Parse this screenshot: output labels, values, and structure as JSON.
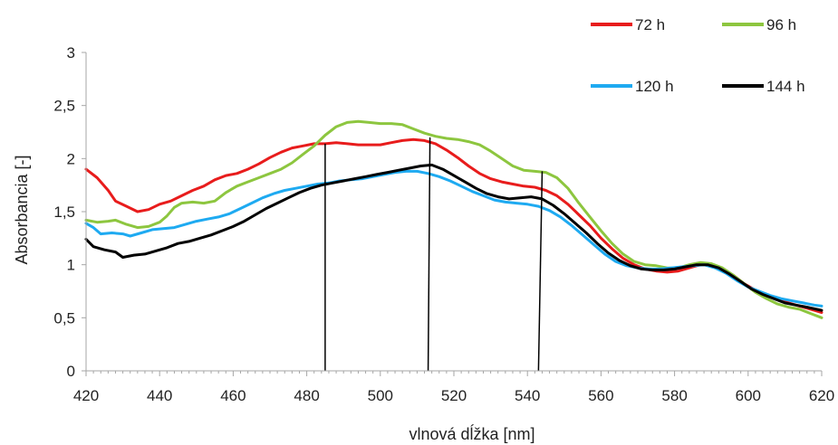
{
  "chart_data": {
    "type": "line",
    "title": "",
    "xlabel": "vlnová dĺžka [nm]",
    "ylabel": "Absorbancia [-]",
    "xlim": [
      420,
      620
    ],
    "ylim": [
      0,
      3
    ],
    "x_ticks": [
      420,
      440,
      460,
      480,
      500,
      520,
      540,
      560,
      580,
      600,
      620
    ],
    "x_tick_labels": [
      "420",
      "440",
      "460",
      "480",
      "500",
      "520",
      "540",
      "560",
      "580",
      "600",
      "620"
    ],
    "y_ticks": [
      0,
      0.5,
      1,
      1.5,
      2,
      2.5,
      3
    ],
    "y_tick_labels": [
      "0",
      "0,5",
      "1",
      "1,5",
      "2",
      "2,5",
      "3"
    ],
    "grid": false,
    "legend_position": "top-right",
    "series": [
      {
        "name": "72 h",
        "color": "#e81c1c",
        "points": [
          [
            420,
            1.9
          ],
          [
            423,
            1.82
          ],
          [
            426,
            1.7
          ],
          [
            428,
            1.6
          ],
          [
            431,
            1.55
          ],
          [
            434,
            1.5
          ],
          [
            437,
            1.52
          ],
          [
            440,
            1.57
          ],
          [
            443,
            1.6
          ],
          [
            446,
            1.65
          ],
          [
            449,
            1.7
          ],
          [
            452,
            1.74
          ],
          [
            455,
            1.8
          ],
          [
            458,
            1.84
          ],
          [
            461,
            1.86
          ],
          [
            464,
            1.9
          ],
          [
            467,
            1.95
          ],
          [
            470,
            2.01
          ],
          [
            473,
            2.06
          ],
          [
            476,
            2.1
          ],
          [
            479,
            2.12
          ],
          [
            482,
            2.14
          ],
          [
            485,
            2.14
          ],
          [
            488,
            2.15
          ],
          [
            491,
            2.14
          ],
          [
            494,
            2.13
          ],
          [
            497,
            2.13
          ],
          [
            500,
            2.13
          ],
          [
            503,
            2.15
          ],
          [
            506,
            2.17
          ],
          [
            509,
            2.18
          ],
          [
            512,
            2.17
          ],
          [
            515,
            2.14
          ],
          [
            518,
            2.08
          ],
          [
            521,
            2.01
          ],
          [
            524,
            1.93
          ],
          [
            527,
            1.86
          ],
          [
            530,
            1.81
          ],
          [
            533,
            1.78
          ],
          [
            536,
            1.76
          ],
          [
            539,
            1.74
          ],
          [
            542,
            1.73
          ],
          [
            545,
            1.7
          ],
          [
            548,
            1.65
          ],
          [
            551,
            1.57
          ],
          [
            554,
            1.47
          ],
          [
            557,
            1.37
          ],
          [
            560,
            1.25
          ],
          [
            563,
            1.15
          ],
          [
            566,
            1.06
          ],
          [
            569,
            1.0
          ],
          [
            572,
            0.96
          ],
          [
            575,
            0.94
          ],
          [
            578,
            0.93
          ],
          [
            581,
            0.94
          ],
          [
            584,
            0.97
          ],
          [
            587,
            1.0
          ],
          [
            590,
            1.0
          ],
          [
            593,
            0.96
          ],
          [
            596,
            0.9
          ],
          [
            599,
            0.82
          ],
          [
            602,
            0.76
          ],
          [
            605,
            0.72
          ],
          [
            608,
            0.68
          ],
          [
            611,
            0.64
          ],
          [
            614,
            0.61
          ],
          [
            617,
            0.58
          ],
          [
            620,
            0.55
          ]
        ]
      },
      {
        "name": "96 h",
        "color": "#8dc63f",
        "points": [
          [
            420,
            1.42
          ],
          [
            423,
            1.4
          ],
          [
            426,
            1.41
          ],
          [
            428,
            1.42
          ],
          [
            431,
            1.38
          ],
          [
            434,
            1.35
          ],
          [
            437,
            1.36
          ],
          [
            440,
            1.4
          ],
          [
            442,
            1.46
          ],
          [
            444,
            1.54
          ],
          [
            446,
            1.58
          ],
          [
            449,
            1.59
          ],
          [
            452,
            1.58
          ],
          [
            455,
            1.6
          ],
          [
            458,
            1.68
          ],
          [
            461,
            1.74
          ],
          [
            464,
            1.78
          ],
          [
            467,
            1.82
          ],
          [
            470,
            1.86
          ],
          [
            473,
            1.9
          ],
          [
            476,
            1.96
          ],
          [
            479,
            2.04
          ],
          [
            482,
            2.12
          ],
          [
            485,
            2.22
          ],
          [
            488,
            2.3
          ],
          [
            491,
            2.34
          ],
          [
            494,
            2.35
          ],
          [
            497,
            2.34
          ],
          [
            500,
            2.33
          ],
          [
            503,
            2.33
          ],
          [
            506,
            2.32
          ],
          [
            509,
            2.28
          ],
          [
            512,
            2.24
          ],
          [
            515,
            2.21
          ],
          [
            518,
            2.19
          ],
          [
            521,
            2.18
          ],
          [
            524,
            2.16
          ],
          [
            527,
            2.13
          ],
          [
            530,
            2.07
          ],
          [
            533,
            2.0
          ],
          [
            536,
            1.93
          ],
          [
            539,
            1.89
          ],
          [
            542,
            1.88
          ],
          [
            545,
            1.87
          ],
          [
            548,
            1.82
          ],
          [
            551,
            1.72
          ],
          [
            554,
            1.58
          ],
          [
            557,
            1.45
          ],
          [
            560,
            1.32
          ],
          [
            563,
            1.2
          ],
          [
            566,
            1.1
          ],
          [
            569,
            1.03
          ],
          [
            572,
            1.0
          ],
          [
            575,
            0.99
          ],
          [
            578,
            0.97
          ],
          [
            581,
            0.97
          ],
          [
            584,
            1.0
          ],
          [
            587,
            1.02
          ],
          [
            590,
            1.01
          ],
          [
            593,
            0.97
          ],
          [
            596,
            0.9
          ],
          [
            599,
            0.82
          ],
          [
            602,
            0.74
          ],
          [
            605,
            0.68
          ],
          [
            608,
            0.63
          ],
          [
            611,
            0.6
          ],
          [
            614,
            0.58
          ],
          [
            617,
            0.54
          ],
          [
            620,
            0.5
          ]
        ]
      },
      {
        "name": "120 h",
        "color": "#1eaaf1",
        "points": [
          [
            420,
            1.39
          ],
          [
            422,
            1.35
          ],
          [
            424,
            1.29
          ],
          [
            427,
            1.3
          ],
          [
            430,
            1.29
          ],
          [
            432,
            1.27
          ],
          [
            435,
            1.3
          ],
          [
            438,
            1.33
          ],
          [
            441,
            1.34
          ],
          [
            444,
            1.35
          ],
          [
            447,
            1.38
          ],
          [
            450,
            1.41
          ],
          [
            453,
            1.43
          ],
          [
            456,
            1.45
          ],
          [
            459,
            1.48
          ],
          [
            462,
            1.53
          ],
          [
            465,
            1.58
          ],
          [
            468,
            1.63
          ],
          [
            471,
            1.67
          ],
          [
            474,
            1.7
          ],
          [
            477,
            1.72
          ],
          [
            480,
            1.74
          ],
          [
            483,
            1.76
          ],
          [
            486,
            1.77
          ],
          [
            489,
            1.79
          ],
          [
            492,
            1.8
          ],
          [
            495,
            1.81
          ],
          [
            498,
            1.83
          ],
          [
            501,
            1.85
          ],
          [
            504,
            1.87
          ],
          [
            507,
            1.88
          ],
          [
            510,
            1.88
          ],
          [
            513,
            1.86
          ],
          [
            516,
            1.83
          ],
          [
            519,
            1.79
          ],
          [
            522,
            1.74
          ],
          [
            525,
            1.69
          ],
          [
            528,
            1.65
          ],
          [
            531,
            1.61
          ],
          [
            534,
            1.59
          ],
          [
            537,
            1.58
          ],
          [
            540,
            1.57
          ],
          [
            543,
            1.55
          ],
          [
            546,
            1.51
          ],
          [
            549,
            1.45
          ],
          [
            552,
            1.37
          ],
          [
            555,
            1.28
          ],
          [
            558,
            1.19
          ],
          [
            561,
            1.1
          ],
          [
            564,
            1.03
          ],
          [
            567,
            0.99
          ],
          [
            570,
            0.97
          ],
          [
            573,
            0.96
          ],
          [
            576,
            0.96
          ],
          [
            579,
            0.97
          ],
          [
            582,
            0.98
          ],
          [
            585,
            0.99
          ],
          [
            588,
            1.0
          ],
          [
            591,
            0.97
          ],
          [
            594,
            0.92
          ],
          [
            597,
            0.85
          ],
          [
            600,
            0.79
          ],
          [
            603,
            0.75
          ],
          [
            606,
            0.71
          ],
          [
            609,
            0.68
          ],
          [
            612,
            0.66
          ],
          [
            615,
            0.64
          ],
          [
            618,
            0.62
          ],
          [
            620,
            0.61
          ]
        ]
      },
      {
        "name": "144 h",
        "color": "#000000",
        "points": [
          [
            420,
            1.24
          ],
          [
            422,
            1.17
          ],
          [
            425,
            1.14
          ],
          [
            428,
            1.12
          ],
          [
            430,
            1.07
          ],
          [
            433,
            1.09
          ],
          [
            436,
            1.1
          ],
          [
            439,
            1.13
          ],
          [
            442,
            1.16
          ],
          [
            445,
            1.2
          ],
          [
            448,
            1.22
          ],
          [
            451,
            1.25
          ],
          [
            454,
            1.28
          ],
          [
            457,
            1.32
          ],
          [
            460,
            1.36
          ],
          [
            463,
            1.41
          ],
          [
            466,
            1.47
          ],
          [
            469,
            1.53
          ],
          [
            472,
            1.58
          ],
          [
            475,
            1.63
          ],
          [
            478,
            1.68
          ],
          [
            481,
            1.72
          ],
          [
            484,
            1.75
          ],
          [
            487,
            1.77
          ],
          [
            490,
            1.79
          ],
          [
            493,
            1.81
          ],
          [
            496,
            1.83
          ],
          [
            499,
            1.85
          ],
          [
            502,
            1.87
          ],
          [
            505,
            1.89
          ],
          [
            508,
            1.91
          ],
          [
            511,
            1.93
          ],
          [
            514,
            1.94
          ],
          [
            517,
            1.9
          ],
          [
            520,
            1.84
          ],
          [
            523,
            1.78
          ],
          [
            526,
            1.72
          ],
          [
            529,
            1.67
          ],
          [
            532,
            1.64
          ],
          [
            535,
            1.62
          ],
          [
            538,
            1.63
          ],
          [
            541,
            1.64
          ],
          [
            544,
            1.62
          ],
          [
            547,
            1.56
          ],
          [
            550,
            1.48
          ],
          [
            553,
            1.39
          ],
          [
            556,
            1.3
          ],
          [
            559,
            1.2
          ],
          [
            562,
            1.11
          ],
          [
            565,
            1.04
          ],
          [
            568,
            0.99
          ],
          [
            571,
            0.96
          ],
          [
            574,
            0.95
          ],
          [
            577,
            0.95
          ],
          [
            580,
            0.96
          ],
          [
            583,
            0.98
          ],
          [
            586,
            1.0
          ],
          [
            589,
            1.0
          ],
          [
            592,
            0.97
          ],
          [
            595,
            0.91
          ],
          [
            598,
            0.84
          ],
          [
            601,
            0.77
          ],
          [
            604,
            0.72
          ],
          [
            607,
            0.68
          ],
          [
            610,
            0.64
          ],
          [
            613,
            0.62
          ],
          [
            616,
            0.6
          ],
          [
            620,
            0.57
          ]
        ]
      }
    ],
    "annotations": [
      {
        "type": "marker-line",
        "x_bottom": 485,
        "x_top": 485,
        "y_top": 2.14
      },
      {
        "type": "marker-line",
        "x_bottom": 513,
        "x_top": 513.5,
        "y_top": 2.2
      },
      {
        "type": "marker-line",
        "x_bottom": 543,
        "x_top": 544,
        "y_top": 1.88
      }
    ]
  }
}
